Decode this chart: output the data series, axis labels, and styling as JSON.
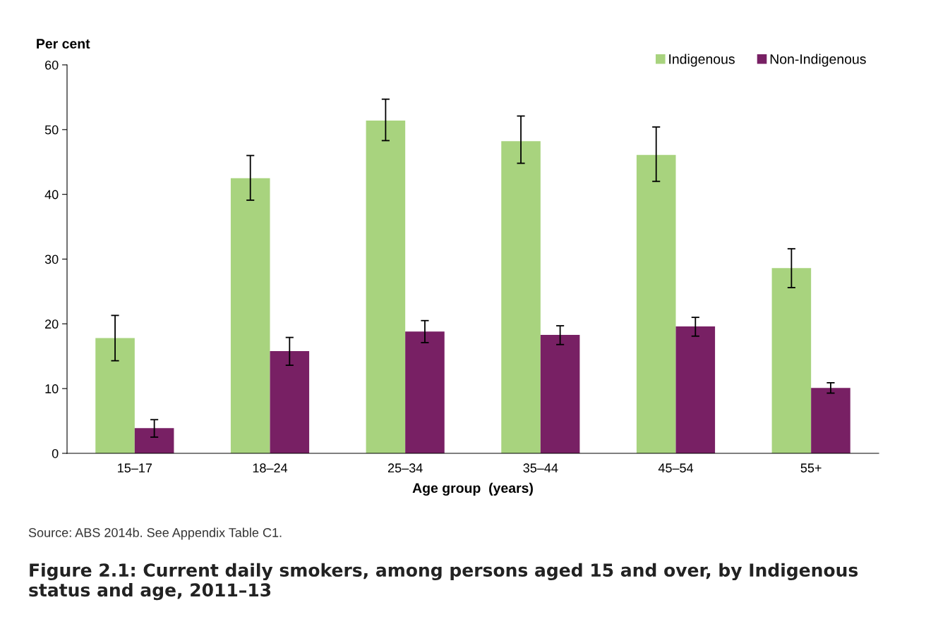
{
  "chart_data": {
    "type": "bar",
    "title": "Figure 2.1: Current daily smokers, among persons aged 15 and over, by Indigenous status and age, 2011–13",
    "xlabel": "Age group  (years)",
    "ylabel": "Per cent",
    "categories": [
      "15–17",
      "18–24",
      "25–34",
      "35–44",
      "45–54",
      "55+"
    ],
    "series": [
      {
        "name": "Indigenous",
        "color": "#a8d37e",
        "values": [
          17.8,
          42.5,
          51.4,
          48.2,
          46.1,
          28.6
        ],
        "errors": [
          [
            14.3,
            21.3
          ],
          [
            39.1,
            46.0
          ],
          [
            48.3,
            54.7
          ],
          [
            44.8,
            52.1
          ],
          [
            42.0,
            50.4
          ],
          [
            25.6,
            31.6
          ]
        ]
      },
      {
        "name": "Non-Indigenous",
        "color": "#782064",
        "values": [
          3.9,
          15.8,
          18.8,
          18.3,
          19.6,
          10.1
        ],
        "errors": [
          [
            2.5,
            5.2
          ],
          [
            13.6,
            17.9
          ],
          [
            17.1,
            20.5
          ],
          [
            16.8,
            19.7
          ],
          [
            18.1,
            21.0
          ],
          [
            9.3,
            10.9
          ]
        ]
      }
    ],
    "ylim": [
      0,
      60
    ],
    "yticks": [
      0,
      10,
      20,
      30,
      40,
      50,
      60
    ],
    "grid": false,
    "legend": "top right",
    "annotations": [
      "Source: ABS 2014b. See Appendix Table C1."
    ]
  }
}
